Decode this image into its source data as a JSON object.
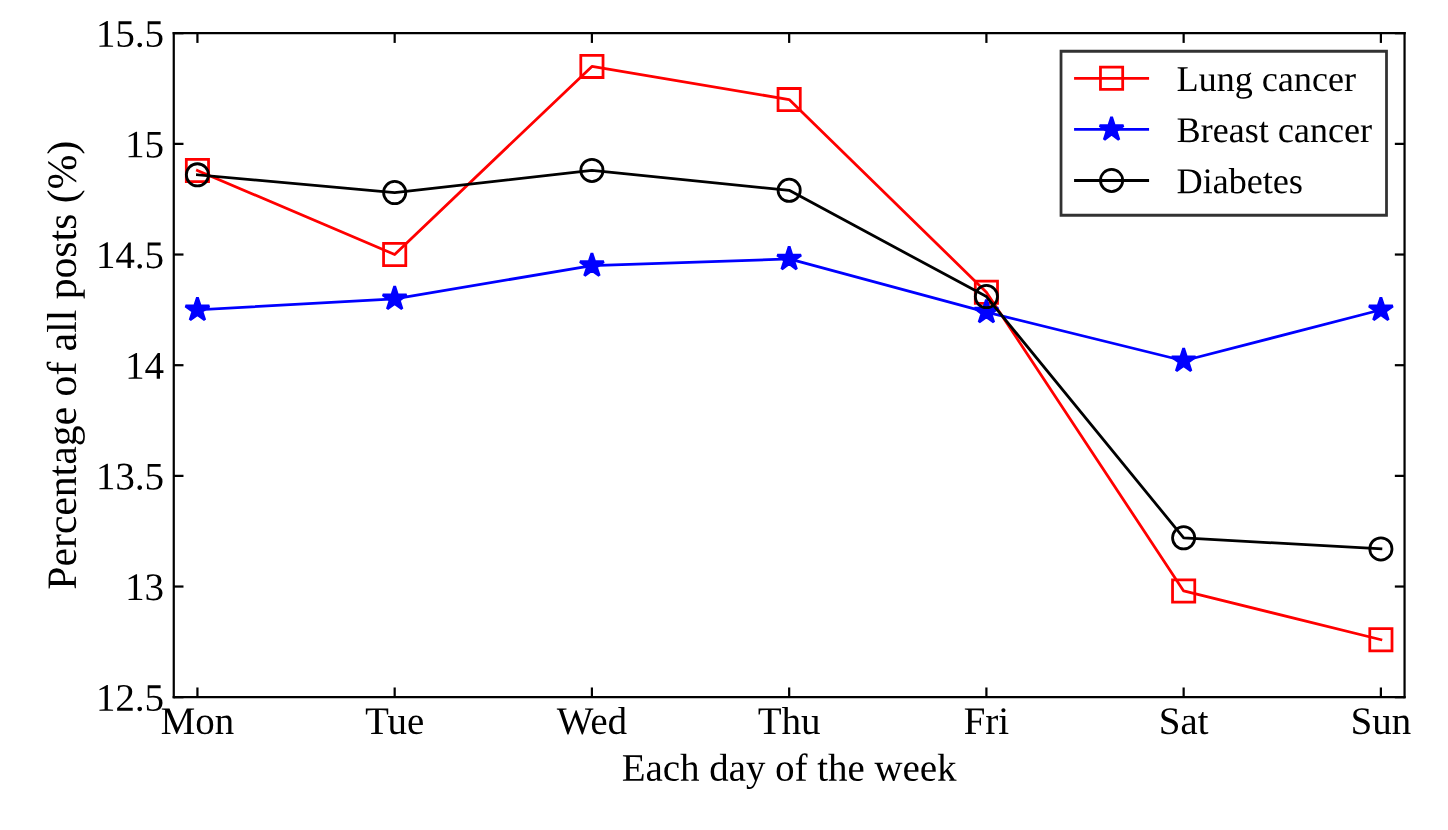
{
  "chart_data": {
    "type": "line",
    "xlabel": "Each day of the week",
    "ylabel": "Percentage of all posts (%)",
    "categories": [
      "Mon",
      "Tue",
      "Wed",
      "Thu",
      "Fri",
      "Sat",
      "Sun"
    ],
    "series": [
      {
        "name": "Lung cancer",
        "color": "#ff0000",
        "marker": "square",
        "values": [
          14.88,
          14.5,
          15.35,
          15.2,
          14.33,
          12.98,
          12.76
        ]
      },
      {
        "name": "Breast cancer",
        "color": "#0000ff",
        "marker": "star",
        "values": [
          14.25,
          14.3,
          14.45,
          14.48,
          14.24,
          14.02,
          14.25
        ]
      },
      {
        "name": "Diabetes",
        "color": "#000000",
        "marker": "circle",
        "values": [
          14.86,
          14.78,
          14.88,
          14.79,
          14.31,
          13.22,
          13.17
        ]
      }
    ],
    "ylim": [
      12.5,
      15.5
    ],
    "yticks": [
      12.5,
      13,
      13.5,
      14,
      14.5,
      15,
      15.5
    ],
    "legend": "top right",
    "grid": false,
    "line_style": "solid"
  }
}
